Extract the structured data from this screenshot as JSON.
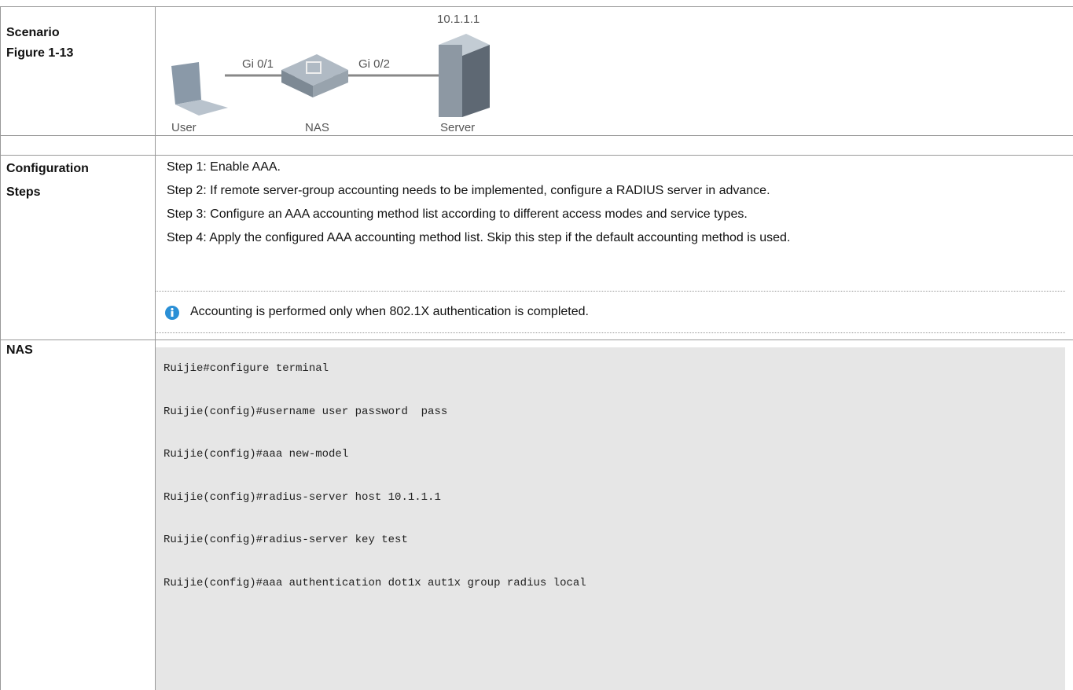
{
  "table": {
    "rows": [
      {
        "label": [
          "Scenario",
          "Figure 1-13"
        ],
        "figure": {
          "ip": "10.1.1.1",
          "port1": "Gi 0/1",
          "port2": "Gi 0/2",
          "nodes": [
            "User",
            "NAS",
            "Server"
          ]
        }
      },
      {
        "label": []
      },
      {
        "label": [
          "Configuration",
          "Steps"
        ],
        "steps": [
          "Step 1: Enable AAA.",
          "Step 2: If remote server-group accounting needs to be implemented, configure a RADIUS server in advance.",
          "Step 3: Configure an AAA accounting method list according to different access modes and service types.",
          "Step 4: Apply the configured AAA accounting method list. Skip this step if the default accounting method is used."
        ],
        "note": "Accounting is performed only when 802.1X authentication is completed."
      },
      {
        "label": [
          "NAS"
        ],
        "code": [
          "Ruijie#configure terminal",
          "Ruijie(config)#username user password  pass",
          "Ruijie(config)#aaa new-model",
          "Ruijie(config)#radius-server host 10.1.1.1",
          "Ruijie(config)#radius-server key test",
          "Ruijie(config)#aaa authentication dot1x aut1x group radius local"
        ]
      }
    ]
  }
}
